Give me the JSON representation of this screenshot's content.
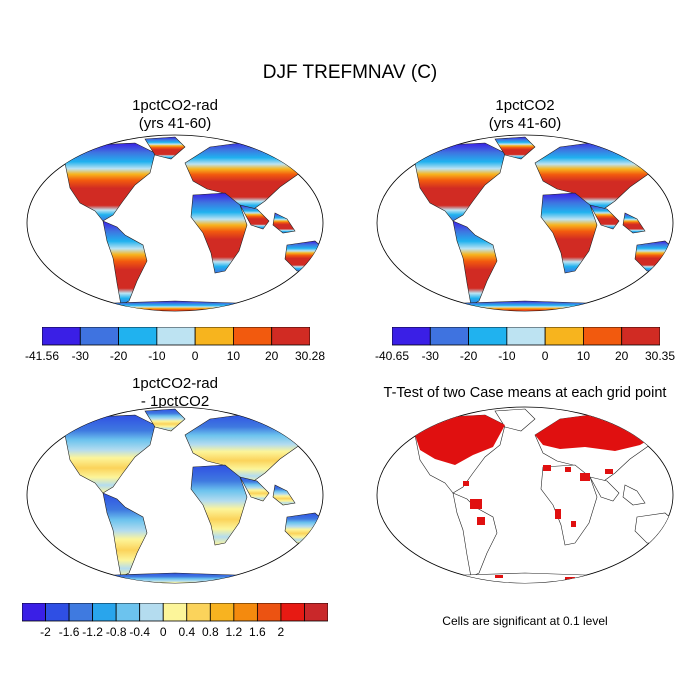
{
  "title": "DJF TREFMNAV (C)",
  "colors": {
    "abs_scale": [
      "#3a1fe6",
      "#3f73e0",
      "#20b2ef",
      "#bde3f2",
      "#f7b41e",
      "#f25a0e",
      "#d12b23"
    ],
    "diff_scale": [
      "#3a1fe6",
      "#2f4fe4",
      "#3f7ae0",
      "#29a5ec",
      "#6cc3ee",
      "#b4dcef",
      "#fcf59a",
      "#fbd35b",
      "#f8b320",
      "#f48a0e",
      "#ec5312",
      "#e71a13",
      "#c9282a"
    ],
    "sig_color": "#e01010"
  },
  "panels": [
    {
      "title_line1": "1pctCO2-rad",
      "title_line2": "(yrs 41-60)",
      "colorbar_labels": [
        "-41.56",
        "-30",
        "-20",
        "-10",
        "0",
        "10",
        "20",
        "30.28"
      ]
    },
    {
      "title_line1": "1pctCO2",
      "title_line2": "(yrs 41-60)",
      "colorbar_labels": [
        "-40.65",
        "-30",
        "-20",
        "-10",
        "0",
        "10",
        "20",
        "30.35"
      ]
    },
    {
      "title_line1": "1pctCO2-rad",
      "title_line2": "- 1pctCO2",
      "colorbar_labels": [
        "-2",
        "-1.6",
        "-1.2",
        "-0.8",
        "-0.4",
        "0",
        "0.4",
        "0.8",
        "1.2",
        "1.6",
        "2"
      ]
    },
    {
      "title_line1": "T-Test of two Case means at each grid point",
      "note": "Cells are significant at 0.1 level"
    }
  ]
}
